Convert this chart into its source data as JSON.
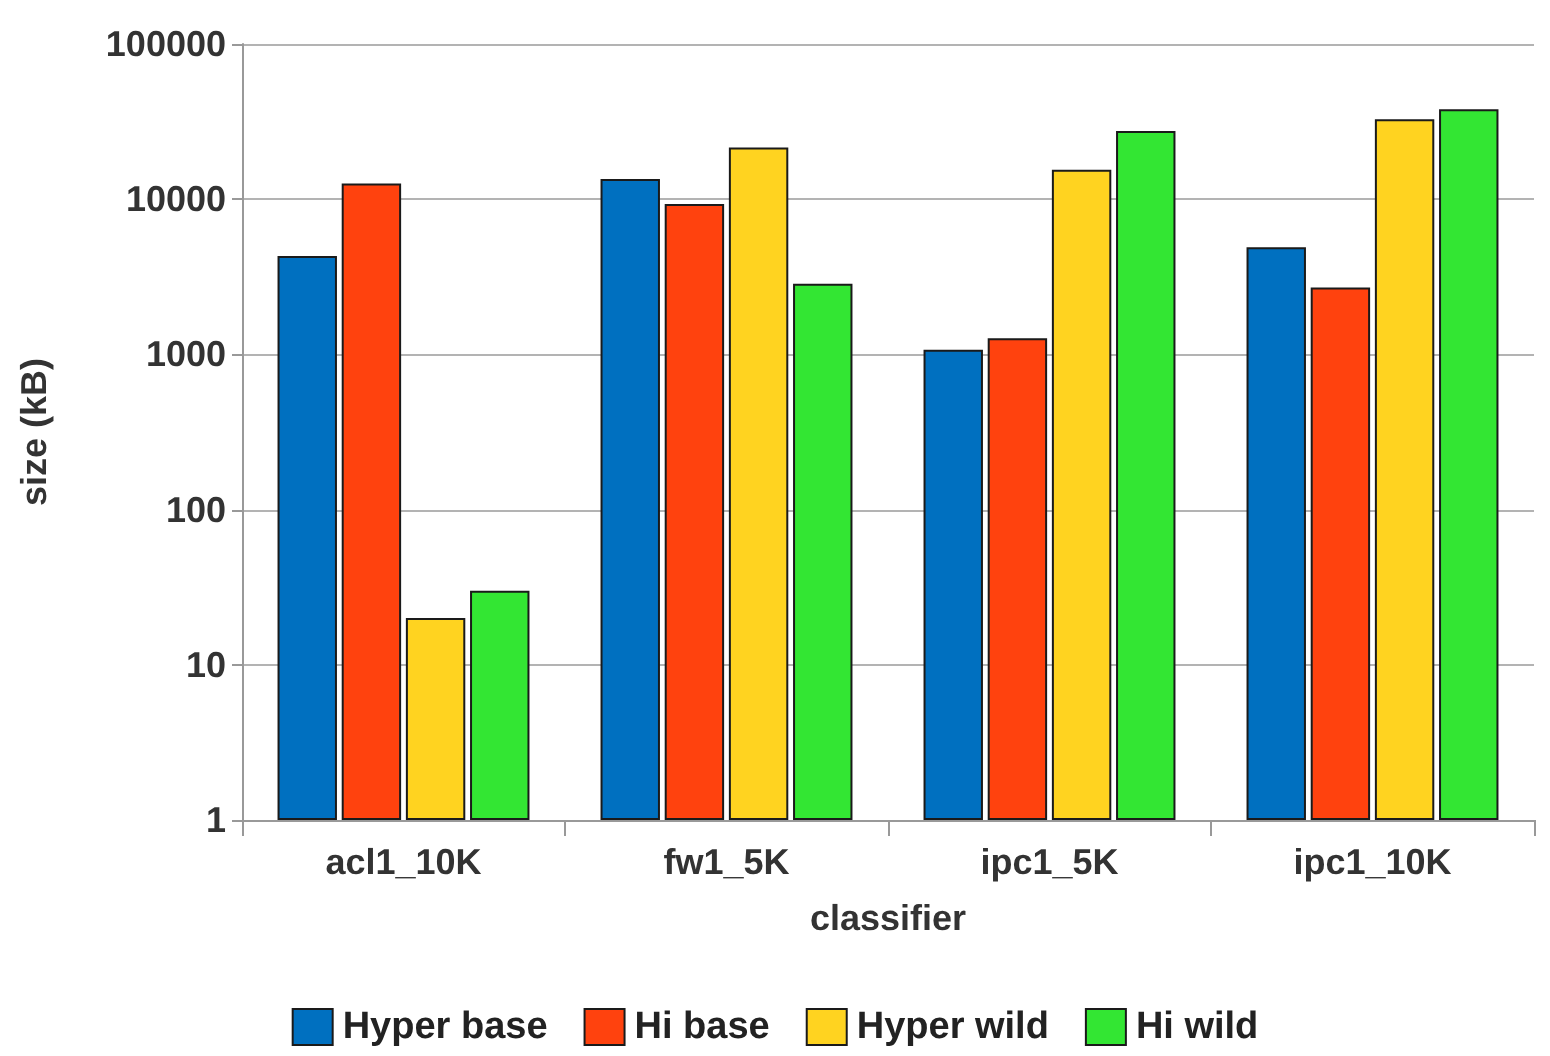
{
  "chart_data": {
    "type": "bar",
    "xlabel": "classifier",
    "ylabel": "size (kB)",
    "categories": [
      "acl1_10K",
      "fw1_5K",
      "ipc1_5K",
      "ipc1_10K"
    ],
    "series": [
      {
        "name": "Hyper base",
        "color": "#0070c0",
        "values": [
          4300,
          13500,
          1070,
          4900
        ]
      },
      {
        "name": "Hi base",
        "color": "#ff420e",
        "values": [
          12600,
          9300,
          1270,
          2700
        ]
      },
      {
        "name": "Hyper wild",
        "color": "#ffd320",
        "values": [
          20,
          21500,
          15500,
          32700
        ]
      },
      {
        "name": "Hi wild",
        "color": "#33e633",
        "values": [
          30,
          2850,
          27500,
          38000
        ]
      }
    ],
    "log": "y",
    "ylim": [
      1,
      100000
    ],
    "yticks": [
      1,
      10,
      100,
      1000,
      10000,
      100000
    ],
    "grid": "y",
    "legend": "bottom"
  }
}
